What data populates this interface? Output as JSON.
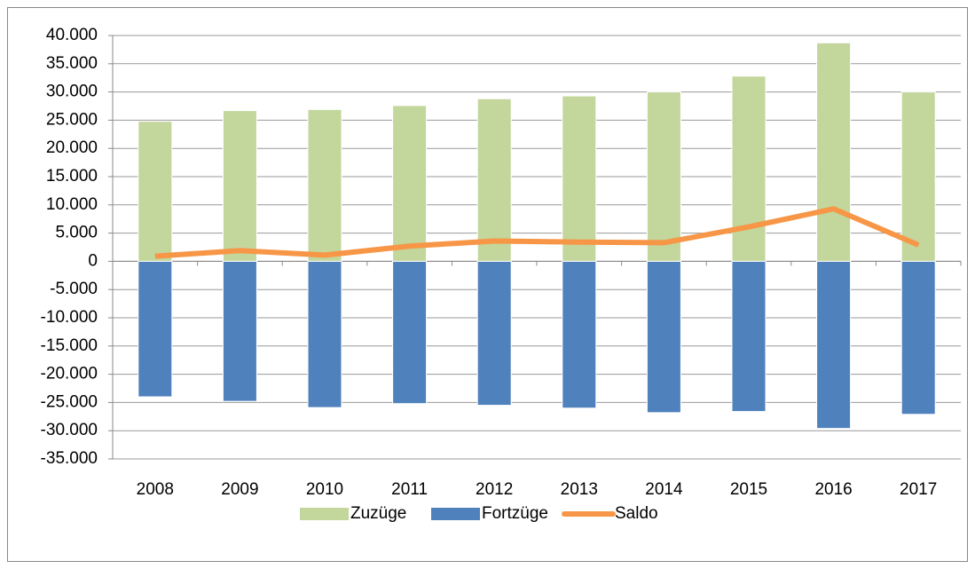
{
  "chart_data": {
    "type": "bar_line",
    "categories": [
      "2008",
      "2009",
      "2010",
      "2011",
      "2012",
      "2013",
      "2014",
      "2015",
      "2016",
      "2017"
    ],
    "series": [
      {
        "name": "Zuzüge",
        "type": "bar",
        "color": "#c3d69b",
        "values": [
          24800,
          26700,
          26900,
          27600,
          28800,
          29300,
          30000,
          32800,
          38700,
          30000
        ]
      },
      {
        "name": "Fortzüge",
        "type": "bar",
        "color": "#4f81bd",
        "values": [
          -24000,
          -24800,
          -25900,
          -25200,
          -25500,
          -26000,
          -26800,
          -26600,
          -29600,
          -27100
        ]
      },
      {
        "name": "Saldo",
        "type": "line",
        "color": "#f79646",
        "values": [
          900,
          1900,
          1100,
          2700,
          3600,
          3400,
          3300,
          6100,
          9300,
          2900
        ]
      }
    ],
    "ylim": [
      -35000,
      40000
    ],
    "yticks": [
      {
        "value": -35000,
        "label": "-35.000"
      },
      {
        "value": -30000,
        "label": "-30.000"
      },
      {
        "value": -25000,
        "label": "-25.000"
      },
      {
        "value": -20000,
        "label": "-20.000"
      },
      {
        "value": -15000,
        "label": "-15.000"
      },
      {
        "value": -10000,
        "label": "-10.000"
      },
      {
        "value": -5000,
        "label": "-5.000"
      },
      0,
      {
        "value": 5000,
        "label": "5.000"
      },
      {
        "value": 10000,
        "label": "10.000"
      },
      {
        "value": 15000,
        "label": "15.000"
      },
      {
        "value": 20000,
        "label": "20.000"
      },
      {
        "value": 25000,
        "label": "25.000"
      },
      {
        "value": 30000,
        "label": "30.000"
      },
      {
        "value": 35000,
        "label": "35.000"
      },
      {
        "value": 40000,
        "label": "40.000"
      }
    ],
    "grid": true,
    "legend": "bottom"
  }
}
